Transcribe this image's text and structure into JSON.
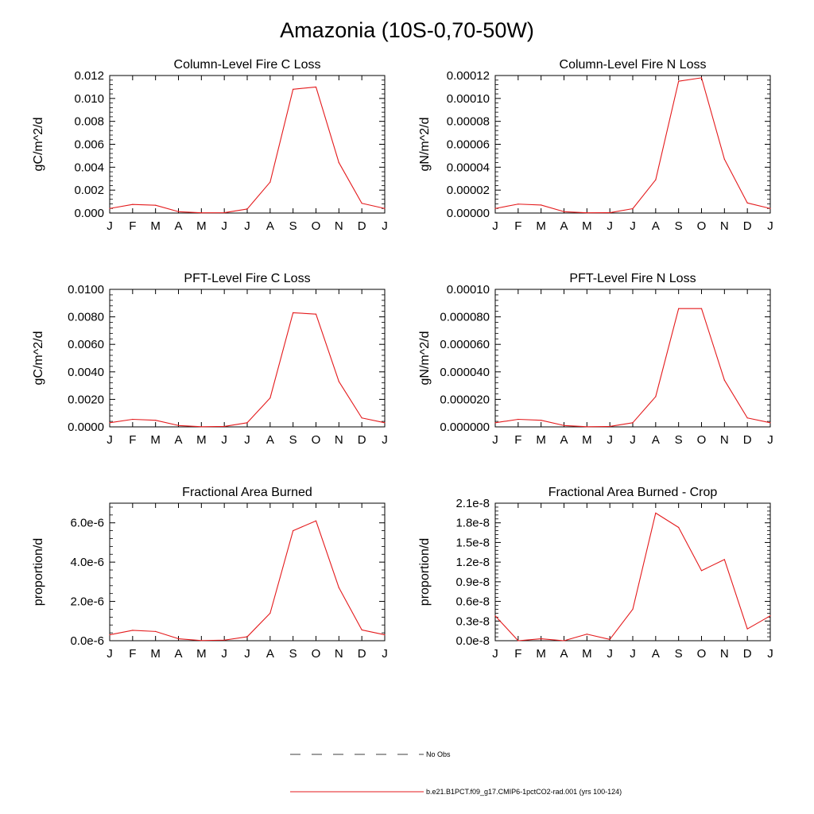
{
  "figure": {
    "title": "Amazonia (10S-0,70-50W)",
    "line_color": "#e41a1c"
  },
  "legend": {
    "obs_label": "No Obs",
    "model_label": "b.e21.B1PCT.f09_g17.CMIP6-1pctCO2-rad.001 (yrs 100-124)"
  },
  "chart_data": [
    {
      "type": "line",
      "title": "Column-Level Fire C Loss",
      "ylabel": "gC/m^2/d",
      "ylim": [
        0,
        0.012
      ],
      "yticks": [
        0,
        0.002,
        0.004,
        0.006,
        0.008,
        0.01,
        0.012
      ],
      "yticklabels": [
        "0.000",
        "0.002",
        "0.004",
        "0.006",
        "0.008",
        "0.010",
        "0.012"
      ],
      "xticklabels": [
        "J",
        "F",
        "M",
        "A",
        "M",
        "J",
        "J",
        "A",
        "S",
        "O",
        "N",
        "D",
        "J"
      ],
      "series": [
        {
          "values": [
            0.0004,
            0.00075,
            0.00068,
            0.00012,
            2e-05,
            3e-05,
            0.00035,
            0.0027,
            0.0108,
            0.011,
            0.0044,
            0.00085,
            0.0004
          ]
        }
      ]
    },
    {
      "type": "line",
      "title": "Column-Level Fire N Loss",
      "ylabel": "gN/m^2/d",
      "ylim": [
        0,
        0.00012
      ],
      "yticks": [
        0,
        2e-05,
        4e-05,
        6e-05,
        8e-05,
        0.0001,
        0.00012
      ],
      "yticklabels": [
        "0.00000",
        "0.00002",
        "0.00004",
        "0.00006",
        "0.00008",
        "0.00010",
        "0.00012"
      ],
      "xticklabels": [
        "J",
        "F",
        "M",
        "A",
        "M",
        "J",
        "J",
        "A",
        "S",
        "O",
        "N",
        "D",
        "J"
      ],
      "series": [
        {
          "values": [
            4e-06,
            7.8e-06,
            7e-06,
            1.2e-06,
            2e-07,
            3e-07,
            3.8e-06,
            2.9e-05,
            0.000115,
            0.000118,
            4.7e-05,
            8.8e-06,
            4e-06
          ]
        }
      ]
    },
    {
      "type": "line",
      "title": "PFT-Level Fire C Loss",
      "ylabel": "gC/m^2/d",
      "ylim": [
        0,
        0.01
      ],
      "yticks": [
        0,
        0.002,
        0.004,
        0.006,
        0.008,
        0.01
      ],
      "yticklabels": [
        "0.0000",
        "0.0020",
        "0.0040",
        "0.0060",
        "0.0080",
        "0.0100"
      ],
      "xticklabels": [
        "J",
        "F",
        "M",
        "A",
        "M",
        "J",
        "J",
        "A",
        "S",
        "O",
        "N",
        "D",
        "J"
      ],
      "series": [
        {
          "values": [
            0.0003,
            0.00055,
            0.00048,
            0.0001,
            1e-05,
            3e-05,
            0.0003,
            0.0021,
            0.0083,
            0.0082,
            0.0033,
            0.00065,
            0.0003
          ]
        }
      ]
    },
    {
      "type": "line",
      "title": "PFT-Level Fire N Loss",
      "ylabel": "gN/m^2/d",
      "ylim": [
        0,
        0.0001
      ],
      "yticks": [
        0,
        2e-05,
        4e-05,
        6e-05,
        8e-05,
        0.0001
      ],
      "yticklabels": [
        "0.000000",
        "0.000020",
        "0.000040",
        "0.000060",
        "0.000080",
        "0.00010"
      ],
      "xticklabels": [
        "J",
        "F",
        "M",
        "A",
        "M",
        "J",
        "J",
        "A",
        "S",
        "O",
        "N",
        "D",
        "J"
      ],
      "series": [
        {
          "values": [
            3e-06,
            5.5e-06,
            4.8e-06,
            1e-06,
            1e-07,
            3e-07,
            3e-06,
            2.2e-05,
            8.6e-05,
            8.6e-05,
            3.4e-05,
            6.5e-06,
            3e-06
          ]
        }
      ]
    },
    {
      "type": "line",
      "title": "Fractional Area Burned",
      "ylabel": "proportion/d",
      "ylim": [
        0,
        7e-06
      ],
      "yticks": [
        0,
        2e-06,
        4e-06,
        6e-06
      ],
      "yticklabels": [
        "0.0e-6",
        "2.0e-6",
        "4.0e-6",
        "6.0e-6"
      ],
      "xticklabels": [
        "J",
        "F",
        "M",
        "A",
        "M",
        "J",
        "J",
        "A",
        "S",
        "O",
        "N",
        "D",
        "J"
      ],
      "series": [
        {
          "values": [
            3e-07,
            5.3e-07,
            4.7e-07,
            1e-07,
            1e-08,
            3e-08,
            2e-07,
            1.4e-06,
            5.6e-06,
            6.1e-06,
            2.7e-06,
            5.5e-07,
            3e-07
          ]
        }
      ]
    },
    {
      "type": "line",
      "title": "Fractional Area Burned - Crop",
      "ylabel": "proportion/d",
      "ylim": [
        0,
        2.1e-08
      ],
      "yticks": [
        0,
        3e-09,
        6e-09,
        9e-09,
        1.2e-08,
        1.5e-08,
        1.8e-08,
        2.1e-08
      ],
      "yticklabels": [
        "0.0e-8",
        "0.3e-8",
        "0.6e-8",
        "0.9e-8",
        "1.2e-8",
        "1.5e-8",
        "1.8e-8",
        "2.1e-8"
      ],
      "xticklabels": [
        "J",
        "F",
        "M",
        "A",
        "M",
        "J",
        "J",
        "A",
        "S",
        "O",
        "N",
        "D",
        "J"
      ],
      "series": [
        {
          "values": [
            3.8e-09,
            0.0,
            3e-10,
            0.0,
            1e-09,
            2e-10,
            4.8e-09,
            1.95e-08,
            1.73e-08,
            1.07e-08,
            1.24e-08,
            1.8e-09,
            3.8e-09
          ]
        }
      ]
    }
  ]
}
